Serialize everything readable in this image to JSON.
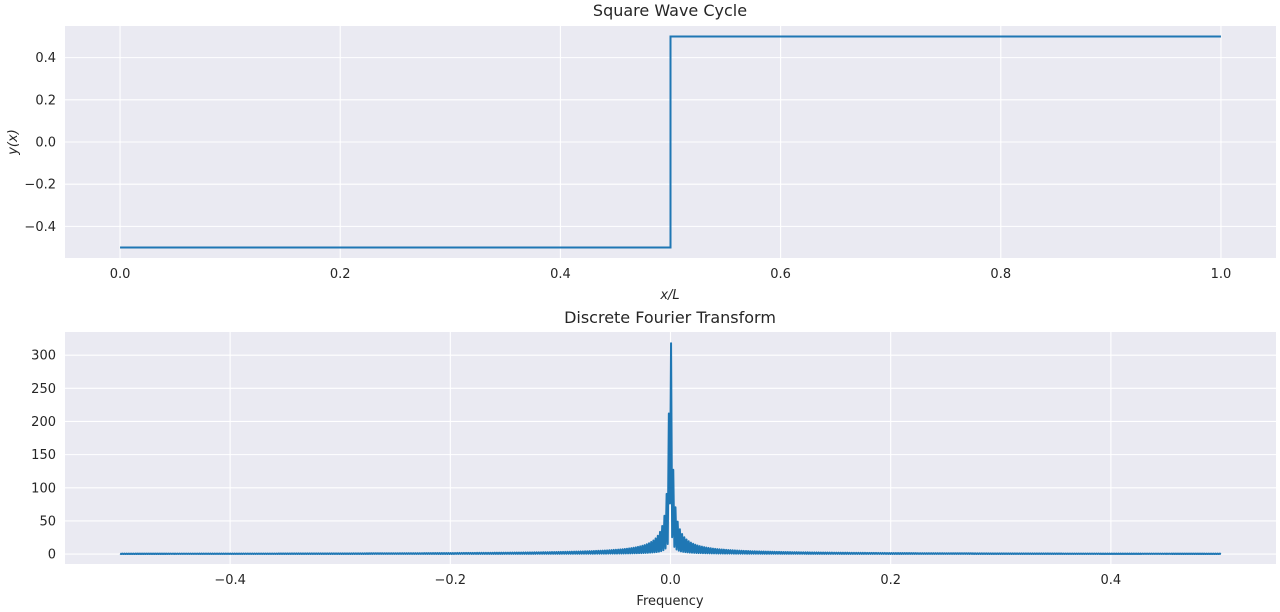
{
  "chart_data": [
    {
      "type": "line",
      "title": "Square Wave Cycle",
      "xlabel": "x/L",
      "ylabel": "y(x)",
      "xlim": [
        -0.05,
        1.05
      ],
      "ylim": [
        -0.55,
        0.55
      ],
      "xticks": [
        0.0,
        0.2,
        0.4,
        0.6,
        0.8,
        1.0
      ],
      "xtick_labels": [
        "0.0",
        "0.2",
        "0.4",
        "0.6",
        "0.8",
        "1.0"
      ],
      "yticks": [
        -0.4,
        -0.2,
        0.0,
        0.2,
        0.4
      ],
      "ytick_labels": [
        "−0.4",
        "−0.2",
        "0.0",
        "0.2",
        "0.4"
      ],
      "grid": true,
      "series": [
        {
          "color": "#1f77b4",
          "x": [
            0.0,
            0.5,
            0.5,
            1.0
          ],
          "y": [
            -0.5,
            -0.5,
            0.5,
            0.5
          ]
        }
      ]
    },
    {
      "type": "line",
      "title": "Discrete Fourier Transform",
      "xlabel": "Frequency",
      "ylabel": "",
      "xlim": [
        -0.55,
        0.55
      ],
      "ylim": [
        -15,
        335
      ],
      "xticks": [
        -0.4,
        -0.2,
        0.0,
        0.2,
        0.4
      ],
      "xtick_labels": [
        "−0.4",
        "−0.2",
        "0.0",
        "0.2",
        "0.4"
      ],
      "yticks": [
        0,
        50,
        100,
        150,
        200,
        250,
        300
      ],
      "ytick_labels": [
        "0",
        "50",
        "100",
        "150",
        "200",
        "250",
        "300"
      ],
      "grid": true,
      "series": [
        {
          "color": "#1f77b4",
          "description": "magnitude spectrum of the square wave; dense oscillating lines with envelope peaking near 318 at frequency 0 and decaying toward 0 at both ends",
          "x_range": [
            -0.5,
            0.5
          ],
          "peak_value": 318,
          "peak_frequency": 0.0,
          "num_samples": 1000
        }
      ]
    }
  ]
}
